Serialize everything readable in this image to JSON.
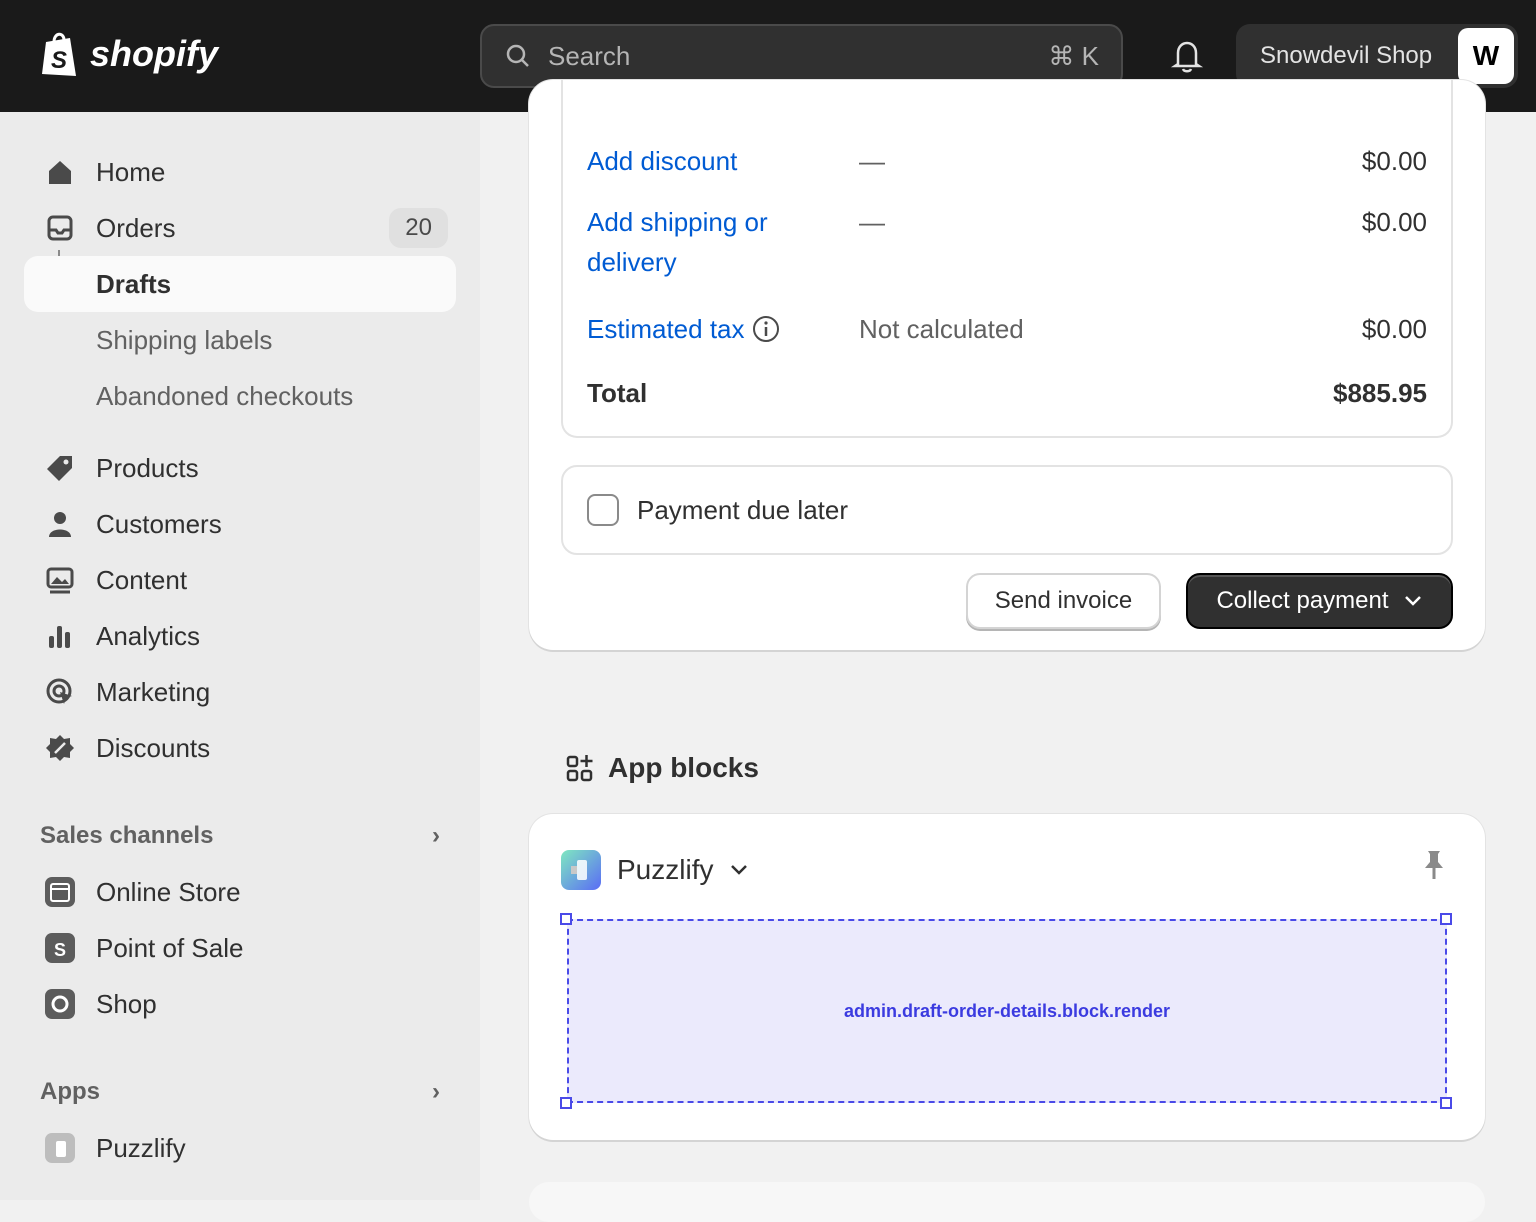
{
  "topbar": {
    "brand": "shopify",
    "search_placeholder": "Search",
    "search_shortcut": "⌘ K",
    "shop_name": "Snowdevil Shop",
    "avatar_initials": "W"
  },
  "sidebar": {
    "items": [
      {
        "label": "Home",
        "icon": "home-icon"
      },
      {
        "label": "Orders",
        "icon": "orders-icon",
        "badge": "20"
      },
      {
        "label": "Drafts",
        "active": true
      },
      {
        "label": "Shipping labels"
      },
      {
        "label": "Abandoned checkouts"
      },
      {
        "label": "Products",
        "icon": "tag-icon"
      },
      {
        "label": "Customers",
        "icon": "person-icon"
      },
      {
        "label": "Content",
        "icon": "content-icon"
      },
      {
        "label": "Analytics",
        "icon": "bar-chart-icon"
      },
      {
        "label": "Marketing",
        "icon": "target-icon"
      },
      {
        "label": "Discounts",
        "icon": "discount-icon"
      }
    ],
    "sales_channels": {
      "title": "Sales channels",
      "items": [
        {
          "label": "Online Store"
        },
        {
          "label": "Point of Sale"
        },
        {
          "label": "Shop"
        }
      ]
    },
    "apps": {
      "title": "Apps",
      "items": [
        {
          "label": "Puzzlify"
        }
      ]
    }
  },
  "summary": {
    "rows": [
      {
        "label": "Add discount",
        "detail": "—",
        "amount": "$0.00"
      },
      {
        "label": "Add shipping or delivery",
        "detail": "—",
        "amount": "$0.00"
      },
      {
        "label": "Estimated tax",
        "detail": "Not calculated",
        "amount": "$0.00"
      }
    ],
    "total_label": "Total",
    "total_amount": "$885.95",
    "payment_due_later": "Payment due later",
    "send_invoice": "Send invoice",
    "collect_payment": "Collect payment"
  },
  "app_blocks": {
    "title": "App blocks",
    "app_name": "Puzzlify",
    "target": "admin.draft-order-details.block.render"
  },
  "colors": {
    "link": "#005bd3",
    "topbar": "#1a1a1a",
    "block_outline": "#4a4ae8",
    "block_fill": "#ebeafc"
  }
}
